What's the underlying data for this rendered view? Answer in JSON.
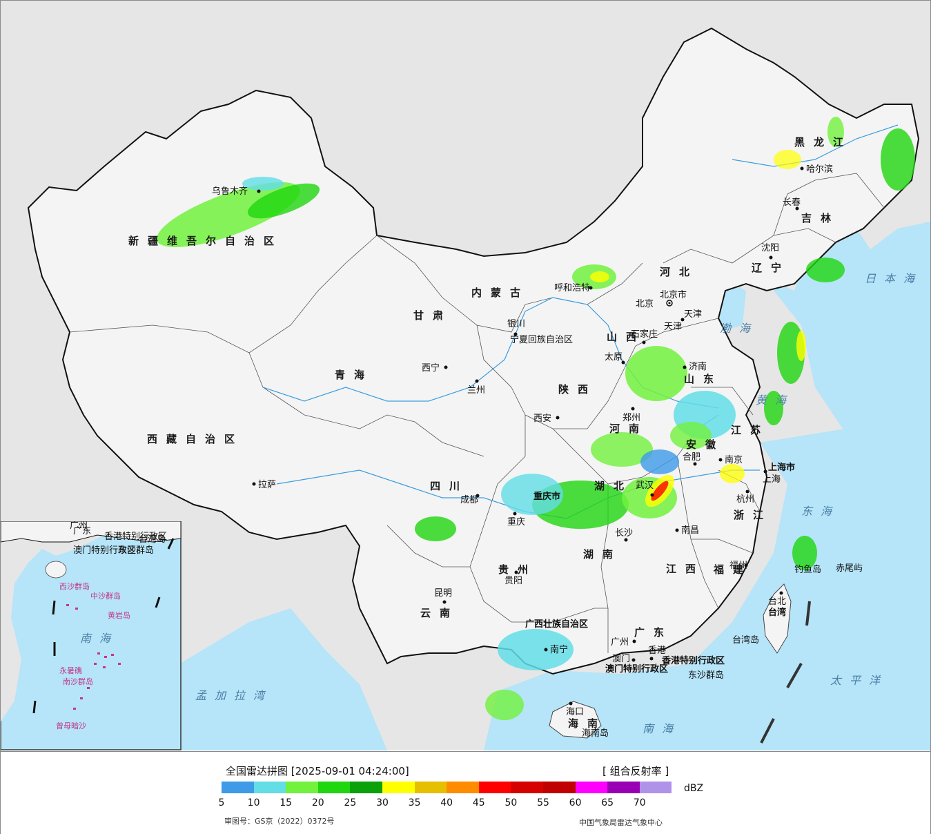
{
  "map": {
    "province_labels": [
      "新疆维吾尔自治区",
      "西藏自治区",
      "青海",
      "甘肃",
      "内蒙古",
      "黑龙江",
      "吉林",
      "辽宁",
      "河北",
      "山西",
      "陕西",
      "宁夏回族自治区",
      "山东",
      "河南",
      "江苏",
      "安徽",
      "湖北",
      "四川",
      "重庆市",
      "湖南",
      "江西",
      "浙江",
      "福建",
      "贵州",
      "云南",
      "广西壮族自治区",
      "广东",
      "海南",
      "台湾",
      "上海市",
      "北京市",
      "天津",
      "香港特别行政区",
      "澳门特别行政区"
    ],
    "cities": [
      "乌鲁木齐",
      "拉萨",
      "西宁",
      "兰州",
      "银川",
      "呼和浩特",
      "北京",
      "天津",
      "石家庄",
      "太原",
      "济南",
      "郑州",
      "西安",
      "合肥",
      "南京",
      "上海",
      "杭州",
      "武汉",
      "成都",
      "重庆",
      "长沙",
      "南昌",
      "福州",
      "贵阳",
      "昆明",
      "南宁",
      "广州",
      "香港",
      "澳门",
      "海口",
      "台北",
      "哈尔滨",
      "长春",
      "沈阳"
    ],
    "sea_labels": [
      "日本海",
      "渤海",
      "黄海",
      "东海",
      "太平洋",
      "南海",
      "孟加拉湾"
    ],
    "island_labels": [
      "钓鱼岛",
      "赤尾屿",
      "台湾岛",
      "东沙群岛",
      "海南岛"
    ],
    "inset_labels": [
      "南海",
      "中沙群岛",
      "西沙群岛",
      "南沙群岛",
      "黄岩岛",
      "永暑礁",
      "曾母暗沙",
      "台湾岛",
      "香港特别行政区",
      "澳门特别行政区",
      "东沙群岛",
      "广州",
      "广东"
    ],
    "colors": {
      "land": "#f4f4f4",
      "sea": "#b6e4f8",
      "foreign": "#e6e6e6",
      "border": "#111111",
      "river": "#3a9de0"
    }
  },
  "legend": {
    "title": "全国雷达拼图 [2025-09-01 04:24:00]",
    "product": "[ 组合反射率 ]",
    "unit": "dBZ",
    "colors": [
      "#3f9ae8",
      "#63dde6",
      "#72f13d",
      "#1fd60f",
      "#0aa10a",
      "#ffff00",
      "#e6c000",
      "#ff8c00",
      "#ff0000",
      "#d60000",
      "#c00000",
      "#ff00ff",
      "#9900b5",
      "#b093e8"
    ],
    "ticks": [
      "5",
      "10",
      "15",
      "20",
      "25",
      "30",
      "35",
      "40",
      "45",
      "50",
      "55",
      "60",
      "65",
      "70"
    ],
    "review_number": "审图号：GS京（2022）0372号",
    "organization": "中国气象局雷达气象中心"
  }
}
